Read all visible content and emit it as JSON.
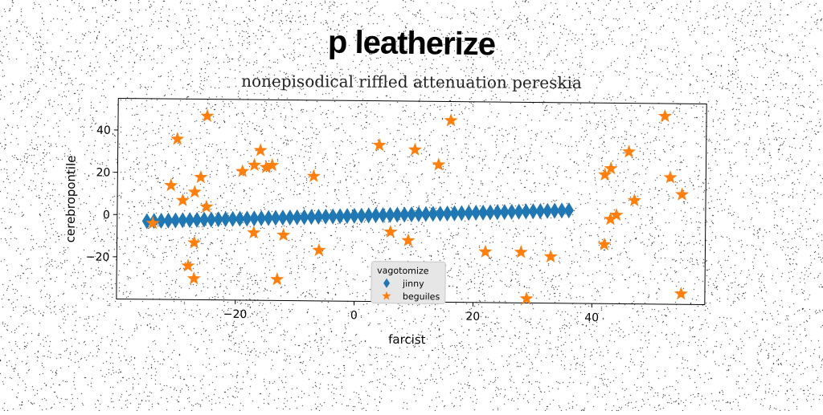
{
  "header": {
    "title": "p leatherize",
    "subtitle": "nonepisodical riffled attenuation pereskia"
  },
  "chart_data": {
    "type": "scatter",
    "title": "p leatherize",
    "subtitle": "nonepisodical riffled attenuation pereskia",
    "xlabel": "farcist",
    "ylabel": "cerebropontile",
    "xlim": [
      -40,
      59
    ],
    "ylim": [
      -40,
      55
    ],
    "xticks": [
      -20,
      0,
      20,
      40
    ],
    "yticks": [
      -20,
      0,
      20,
      40
    ],
    "grid": false,
    "legend": {
      "title": "vagotomize",
      "position": "lower-center"
    },
    "series": [
      {
        "name": "jinny",
        "marker": "diamond",
        "color": "#1f77b4",
        "line": {
          "x_start": -35,
          "x_end": 36,
          "count": 60,
          "y_start": -3,
          "y_end": 4
        }
      },
      {
        "name": "beguiles",
        "marker": "star",
        "color": "#ff7f0e",
        "points": [
          [
            -34,
            -4
          ],
          [
            -31,
            14
          ],
          [
            -30,
            36
          ],
          [
            -29,
            7
          ],
          [
            -28,
            -24
          ],
          [
            -27,
            -30
          ],
          [
            -27,
            -13
          ],
          [
            -27,
            11
          ],
          [
            -26,
            18
          ],
          [
            -25,
            47
          ],
          [
            -25,
            4
          ],
          [
            -19,
            21
          ],
          [
            -17,
            24
          ],
          [
            -17,
            -8
          ],
          [
            -16,
            31
          ],
          [
            -15,
            23
          ],
          [
            -14,
            24
          ],
          [
            -12,
            -9
          ],
          [
            -13,
            -30
          ],
          [
            -7,
            19
          ],
          [
            -6,
            -16
          ],
          [
            4,
            34
          ],
          [
            6,
            -7
          ],
          [
            9,
            -11
          ],
          [
            10,
            32
          ],
          [
            14,
            25
          ],
          [
            16,
            46
          ],
          [
            22,
            -16
          ],
          [
            28,
            -16
          ],
          [
            29,
            -38
          ],
          [
            33,
            -18
          ],
          [
            42,
            21
          ],
          [
            42,
            -12
          ],
          [
            43,
            24
          ],
          [
            43,
            0
          ],
          [
            44,
            2
          ],
          [
            46,
            32
          ],
          [
            47,
            9
          ],
          [
            52,
            49
          ],
          [
            53,
            20
          ],
          [
            55,
            12
          ],
          [
            55,
            -35
          ]
        ]
      }
    ]
  },
  "colors": {
    "series_jinny": "#1f77b4",
    "series_beguiles": "#ff7f0e"
  }
}
